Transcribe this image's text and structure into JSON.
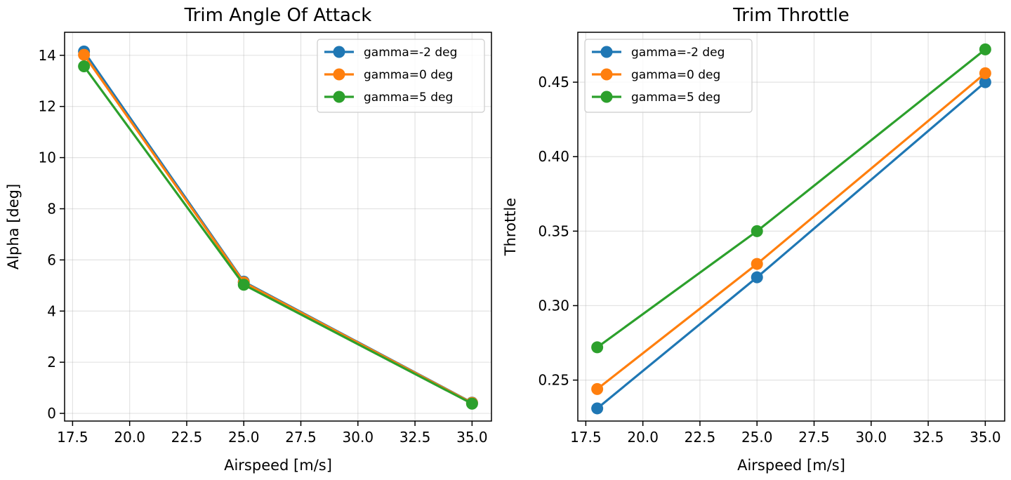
{
  "colors": {
    "series_1": "#1f77b4",
    "series_2": "#ff7f0e",
    "series_3": "#2ca02c"
  },
  "chart_data": [
    {
      "type": "line",
      "title": "Trim Angle Of Attack",
      "xlabel": "Airspeed [m/s]",
      "ylabel": "Alpha [deg]",
      "x": [
        18,
        25,
        35
      ],
      "xlim": [
        17.15,
        35.85
      ],
      "ylim": [
        -0.3,
        14.9
      ],
      "xticks": [
        17.5,
        20.0,
        22.5,
        25.0,
        27.5,
        30.0,
        32.5,
        35.0
      ],
      "xtick_labels": [
        "17.5",
        "20.0",
        "22.5",
        "25.0",
        "27.5",
        "30.0",
        "32.5",
        "35.0"
      ],
      "yticks": [
        0,
        2,
        4,
        6,
        8,
        10,
        12,
        14
      ],
      "ytick_labels": [
        "0",
        "2",
        "4",
        "6",
        "8",
        "10",
        "12",
        "14"
      ],
      "grid": true,
      "legend_position": "upper right",
      "series": [
        {
          "name": "gamma=-2 deg",
          "values": [
            14.15,
            5.15,
            0.42
          ]
        },
        {
          "name": "gamma=0 deg",
          "values": [
            14.02,
            5.12,
            0.41
          ]
        },
        {
          "name": "gamma=5 deg",
          "values": [
            13.57,
            5.03,
            0.38
          ]
        }
      ]
    },
    {
      "type": "line",
      "title": "Trim Throttle",
      "xlabel": "Airspeed [m/s]",
      "ylabel": "Throttle",
      "x": [
        18,
        25,
        35
      ],
      "xlim": [
        17.15,
        35.85
      ],
      "ylim": [
        0.2225,
        0.4835
      ],
      "xticks": [
        17.5,
        20.0,
        22.5,
        25.0,
        27.5,
        30.0,
        32.5,
        35.0
      ],
      "xtick_labels": [
        "17.5",
        "20.0",
        "22.5",
        "25.0",
        "27.5",
        "30.0",
        "32.5",
        "35.0"
      ],
      "yticks": [
        0.25,
        0.3,
        0.35,
        0.4,
        0.45
      ],
      "ytick_labels": [
        "0.25",
        "0.30",
        "0.35",
        "0.40",
        "0.45"
      ],
      "grid": true,
      "legend_position": "upper left",
      "series": [
        {
          "name": "gamma=-2 deg",
          "values": [
            0.231,
            0.319,
            0.45
          ]
        },
        {
          "name": "gamma=0 deg",
          "values": [
            0.244,
            0.328,
            0.456
          ]
        },
        {
          "name": "gamma=5 deg",
          "values": [
            0.272,
            0.35,
            0.472
          ]
        }
      ]
    }
  ]
}
